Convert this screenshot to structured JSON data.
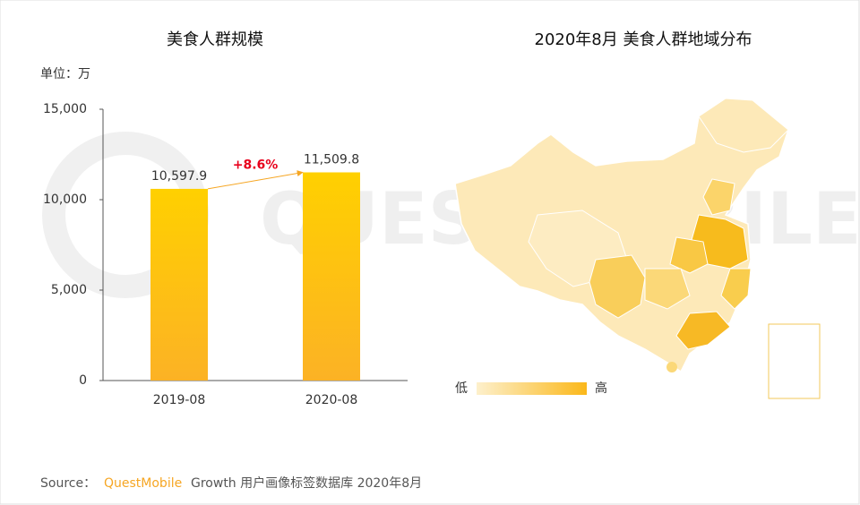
{
  "chart_data": [
    {
      "type": "bar",
      "title": "美食人群规模",
      "unit_label": "单位：万",
      "categories": [
        "2019-08",
        "2020-08"
      ],
      "values": [
        10597.9,
        11509.8
      ],
      "value_labels": [
        "10,597.9",
        "11,509.8"
      ],
      "ylim": [
        0,
        15000
      ],
      "yticks": [
        0,
        {
          "value": 5000,
          "label": "5,000"
        },
        {
          "value": 10000,
          "label": "10,000"
        },
        {
          "value": 15000,
          "label": "15,000"
        }
      ],
      "annotation": "+8.6%",
      "color": "#fcc419"
    },
    {
      "type": "map",
      "title": "2020年8月 美食人群地域分布",
      "legend_low": "低",
      "legend_high": "高"
    }
  ],
  "footer": {
    "source": "Source：",
    "brand": "QuestMobile",
    "text": "Growth 用户画像标签数据库 2020年8月"
  }
}
